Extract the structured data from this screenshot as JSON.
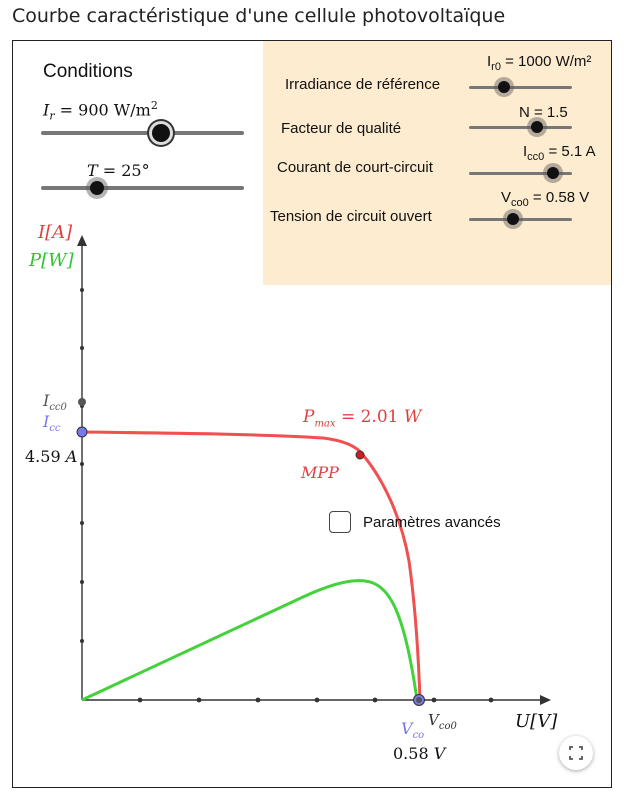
{
  "page": {
    "title": "Courbe caractéristique d'une cellule photovoltaïque"
  },
  "conditions": {
    "heading": "Conditions",
    "irradiance_label": "I_r = 900 W/m²",
    "irradiance_value": 900,
    "temperature_label": "T = 25°",
    "temperature_value": 25
  },
  "advanced": {
    "ref_irradiance": {
      "label": "Irradiance de référence",
      "value_label": "Ir0 = 1000 W/m²",
      "value": 1000
    },
    "quality_factor": {
      "label": "Facteur de qualité",
      "value_label": "N = 1.5",
      "value": 1.5
    },
    "short_circuit": {
      "label": "Courant de court-circuit",
      "value_label": "Icc0 = 5.1 A",
      "value": 5.1
    },
    "open_circuit": {
      "label": "Tension de circuit ouvert",
      "value_label": "Vco0 = 0.58 V",
      "value": 0.58
    }
  },
  "checkbox": {
    "label": "Paramètres avancés",
    "checked": false
  },
  "graph": {
    "y_axis_label_current": "I[A]",
    "y_axis_label_power": "P[W]",
    "x_axis_label": "U[V]",
    "icc0_label": "Icc0",
    "icc_label": "Icc",
    "icc_value_label": "4.59 A",
    "pmax_label": "Pmax = 2.01 W",
    "mpp_label": "MPP",
    "vco_label": "Vco",
    "vco0_label": "Vco0",
    "vco_value_label": "0.58 V",
    "colors": {
      "current": "#f05050",
      "power": "#44d13c",
      "point": "#7777ee",
      "axis": "#333333"
    }
  },
  "icons": {
    "fullscreen": "fullscreen-icon"
  }
}
